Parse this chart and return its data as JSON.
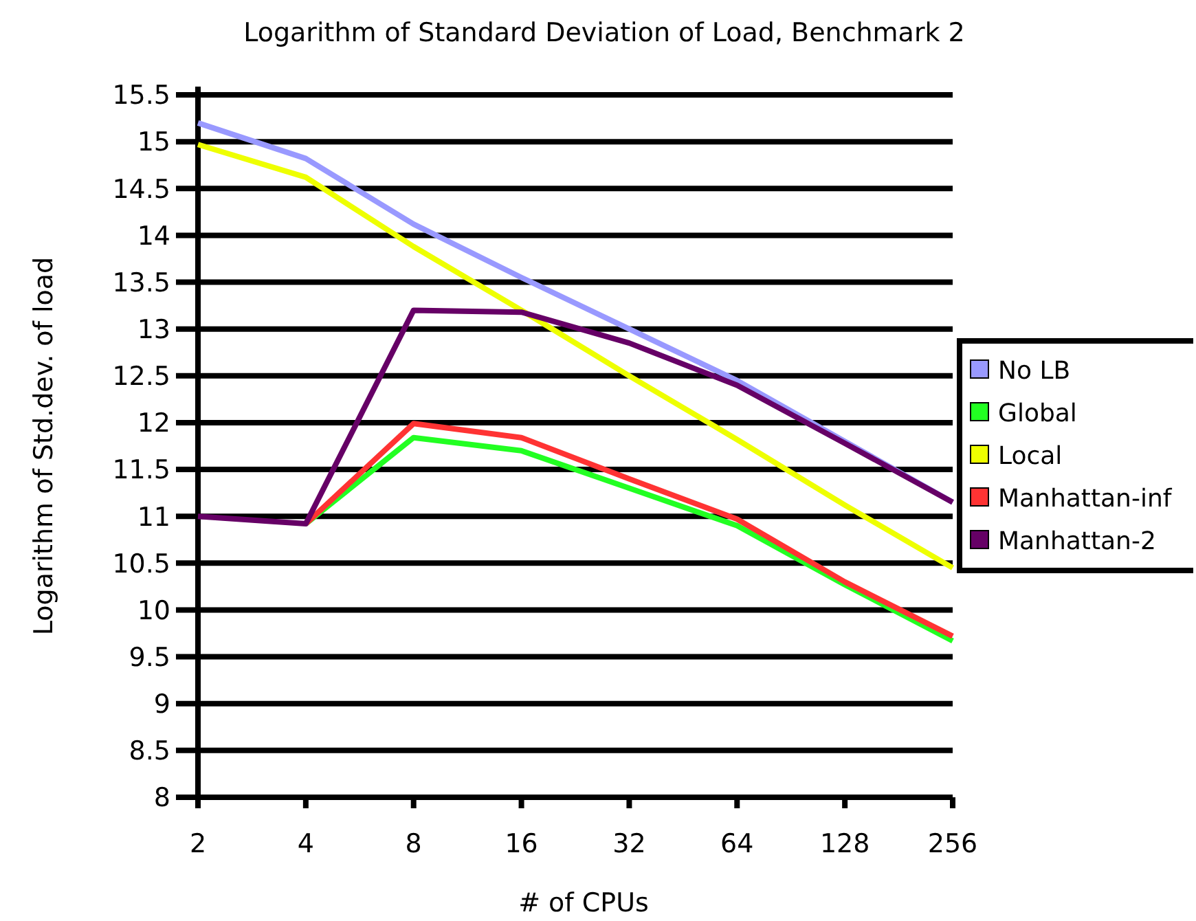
{
  "chart_data": {
    "type": "line",
    "title": "Logarithm of Standard Deviation of Load, Benchmark 2",
    "xlabel": "# of CPUs",
    "ylabel": "Logarithm of Std.dev. of load",
    "categories": [
      "2",
      "4",
      "8",
      "16",
      "32",
      "64",
      "128",
      "256"
    ],
    "series": [
      {
        "name": "No LB",
        "color": "#9999ff",
        "values": [
          15.2,
          14.82,
          14.12,
          13.55,
          13.0,
          12.45,
          11.8,
          11.15
        ]
      },
      {
        "name": "Global",
        "color": "#22ff22",
        "values": [
          null,
          10.92,
          11.84,
          11.7,
          11.3,
          10.9,
          10.27,
          9.67
        ]
      },
      {
        "name": "Local",
        "color": "#eeff00",
        "values": [
          14.97,
          14.62,
          13.88,
          13.2,
          12.5,
          11.82,
          11.12,
          10.45
        ]
      },
      {
        "name": "Manhattan-inf",
        "color": "#ff3333",
        "values": [
          null,
          10.92,
          11.99,
          11.84,
          11.4,
          10.97,
          10.3,
          9.72
        ]
      },
      {
        "name": "Manhattan-2",
        "color": "#660066",
        "values": [
          11.0,
          10.92,
          13.2,
          13.18,
          12.85,
          12.4,
          11.78,
          11.15
        ]
      }
    ],
    "ylim": [
      8,
      15.5
    ],
    "yticks": [
      8,
      8.5,
      9,
      9.5,
      10,
      10.5,
      11,
      11.5,
      12,
      12.5,
      13,
      13.5,
      14,
      14.5,
      15,
      15.5
    ],
    "grid": "y",
    "legend": "right",
    "marker": "none",
    "line_style": "solid"
  }
}
